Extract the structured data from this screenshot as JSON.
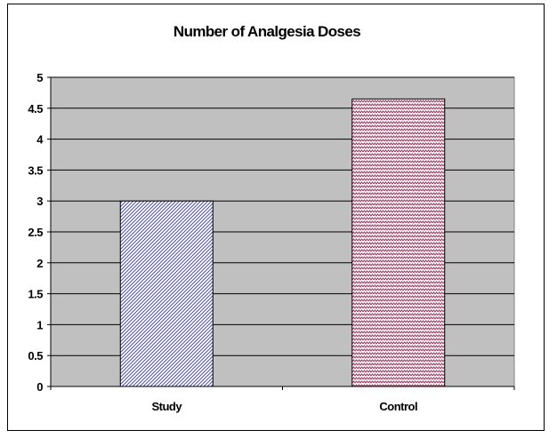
{
  "chart_data": {
    "type": "bar",
    "title": "Number of Analgesia Doses",
    "categories": [
      "Study",
      "Control"
    ],
    "values": [
      3,
      4.65
    ],
    "ylim": [
      0,
      5
    ],
    "yticks": [
      "0",
      "0.5",
      "1",
      "1.5",
      "2",
      "2.5",
      "3",
      "3.5",
      "4",
      "4.5",
      "5"
    ],
    "grid": true,
    "legend": "none",
    "colors": {
      "plot_background": "#c0c0c0",
      "gridline": "#000000",
      "study_hatch": "#4b4bc8",
      "control_hatch": "#a0305a",
      "bar_outline": "#000000"
    },
    "patterns": [
      "blue-diagonal-hatch",
      "red-zigzag-hatch"
    ]
  }
}
